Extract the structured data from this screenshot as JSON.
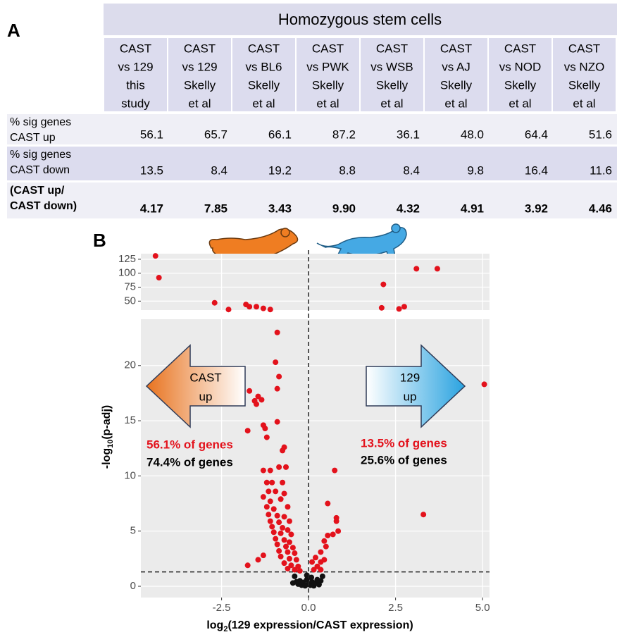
{
  "panel_labels": [
    "A",
    "B"
  ],
  "table": {
    "header": "Homozygous stem cells",
    "columns": [
      [
        "CAST",
        "vs 129",
        "this",
        "study"
      ],
      [
        "CAST",
        "vs 129",
        "Skelly",
        "et al"
      ],
      [
        "CAST",
        "vs BL6",
        "Skelly",
        "et al"
      ],
      [
        "CAST",
        "vs PWK",
        "Skelly",
        "et al"
      ],
      [
        "CAST",
        "vs WSB",
        "Skelly",
        "et al"
      ],
      [
        "CAST",
        "vs AJ",
        "Skelly",
        "et al"
      ],
      [
        "CAST",
        "vs NOD",
        "Skelly",
        "et al"
      ],
      [
        "CAST",
        "vs NZO",
        "Skelly",
        "et al"
      ]
    ],
    "rows": [
      {
        "label": [
          "% sig genes",
          "CAST up"
        ],
        "values": [
          "56.1",
          "65.7",
          "66.1",
          "87.2",
          "36.1",
          "48.0",
          "64.4",
          "51.6"
        ]
      },
      {
        "label": [
          "% sig genes",
          "CAST down"
        ],
        "values": [
          "13.5",
          "8.4",
          "19.2",
          "8.8",
          "8.4",
          "9.8",
          "16.4",
          "11.6"
        ]
      },
      {
        "label": [
          "(CAST up/",
          "CAST down)"
        ],
        "values": [
          "4.17",
          "7.85",
          "3.43",
          "9.90",
          "4.32",
          "4.91",
          "3.92",
          "4.46"
        ]
      }
    ]
  },
  "chart_data": [
    {
      "type": "scatter",
      "xlim": [
        -4.82,
        5.2
      ],
      "ylim": [
        34,
        135
      ],
      "yticks": [
        50,
        75,
        100,
        125
      ],
      "grid": true,
      "series": [
        {
          "color": "#e3121c",
          "x": [
            -4.4,
            -4.3,
            -2.7,
            -2.3,
            -1.8,
            -1.7,
            -1.5,
            -1.3,
            -1.1,
            3.1,
            3.7,
            2.15,
            2.1,
            2.6,
            2.75
          ],
          "values": [
            131,
            92,
            47,
            35,
            44,
            40,
            40,
            37,
            35,
            108,
            108,
            80,
            38,
            36,
            40
          ]
        }
      ]
    },
    {
      "type": "scatter",
      "xlim": [
        -4.82,
        5.2
      ],
      "ylim": [
        -1.02,
        24.2
      ],
      "xticks": [
        -2.5,
        {
          "value": 0,
          "label": "0.0"
        },
        2.5,
        {
          "value": 5,
          "label": "5.0"
        }
      ],
      "yticks": [
        0,
        5,
        10,
        15,
        20
      ],
      "grid": true,
      "xlabel": [
        "log",
        "2",
        "(129 expression/CAST expression)"
      ],
      "ylabel": [
        "-log",
        "10",
        "(p-adj)"
      ],
      "hline": 1.3,
      "vline": 0,
      "annotations": {
        "left_arrow": [
          "CAST",
          "up"
        ],
        "right_arrow": [
          "129",
          "up"
        ],
        "left_pct": [
          "56.1% of genes",
          "74.4% of genes"
        ],
        "right_pct": [
          "13.5% of genes",
          "25.6% of genes"
        ]
      },
      "series": [
        {
          "color": "#e3121c",
          "x": [
            -1.7,
            -1.55,
            -1.5,
            -1.45,
            -1.35,
            -1.75,
            -1.3,
            -1.25,
            -1.2,
            -0.9,
            -0.95,
            -0.85,
            -0.9,
            -0.9,
            -0.75,
            -0.7,
            -1.3,
            -1.1,
            -0.85,
            -0.65,
            -1.2,
            -1.05,
            -0.75,
            -1.15,
            -0.95,
            -0.7,
            -1.3,
            -1.1,
            -0.8,
            -1.2,
            -1.0,
            -0.6,
            -1.15,
            -0.9,
            -0.7,
            -1.1,
            -0.85,
            -0.55,
            -1.05,
            -0.75,
            -0.6,
            -1.0,
            -0.8,
            -0.5,
            -0.95,
            -0.7,
            -0.55,
            -0.9,
            -0.65,
            -0.45,
            -0.85,
            -0.6,
            -0.4,
            -0.8,
            -0.55,
            -0.35,
            -1.45,
            -1.75,
            -0.7,
            -0.5,
            -0.3,
            -0.6,
            -0.4,
            -0.25,
            -1.3,
            0.15,
            0.25,
            0.35,
            0.2,
            0.1,
            0.35,
            0.5,
            0.45,
            0.55,
            0.7,
            0.85,
            0.8,
            0.8,
            0.55,
            0.75,
            5.05,
            3.3,
            0.35,
            0.45
          ],
          "values": [
            17.7,
            16.8,
            16.5,
            17.2,
            16.9,
            14.1,
            14.6,
            14.3,
            13.5,
            23.0,
            20.3,
            19.0,
            17.9,
            14.9,
            12.3,
            12.6,
            10.5,
            10.5,
            10.8,
            10.8,
            9.4,
            9.4,
            9.4,
            8.6,
            8.6,
            8.4,
            8.1,
            7.7,
            7.9,
            7.2,
            7.0,
            7.2,
            6.5,
            6.4,
            6.3,
            5.9,
            5.8,
            5.9,
            5.4,
            5.3,
            5.1,
            4.9,
            4.8,
            4.7,
            4.3,
            4.2,
            4.0,
            3.8,
            3.6,
            3.5,
            3.2,
            3.1,
            3.0,
            2.7,
            2.5,
            2.4,
            2.4,
            1.9,
            2.1,
            1.9,
            1.8,
            1.6,
            1.5,
            1.4,
            2.8,
            1.5,
            1.8,
            2.2,
            2.6,
            2.2,
            3.1,
            3.6,
            4.1,
            4.6,
            4.7,
            5.0,
            5.9,
            6.2,
            7.5,
            10.5,
            18.3,
            6.5,
            1.5,
            2.4
          ]
        },
        {
          "color": "#111111",
          "x": [
            -0.3,
            -0.25,
            -0.2,
            -0.15,
            -0.1,
            -0.05,
            0,
            0.05,
            0.1,
            0.15,
            0.2,
            0.25,
            0.3,
            -0.35,
            -0.4,
            0.35,
            0.4,
            -0.05,
            0.08,
            -0.45
          ],
          "values": [
            0.2,
            0.5,
            0.1,
            0.35,
            0.05,
            0.6,
            0.2,
            0.1,
            0.4,
            0.05,
            0.3,
            0.6,
            0.15,
            0.4,
            0.9,
            0.5,
            0.9,
            1.0,
            0.8,
            0.3
          ]
        }
      ]
    }
  ]
}
